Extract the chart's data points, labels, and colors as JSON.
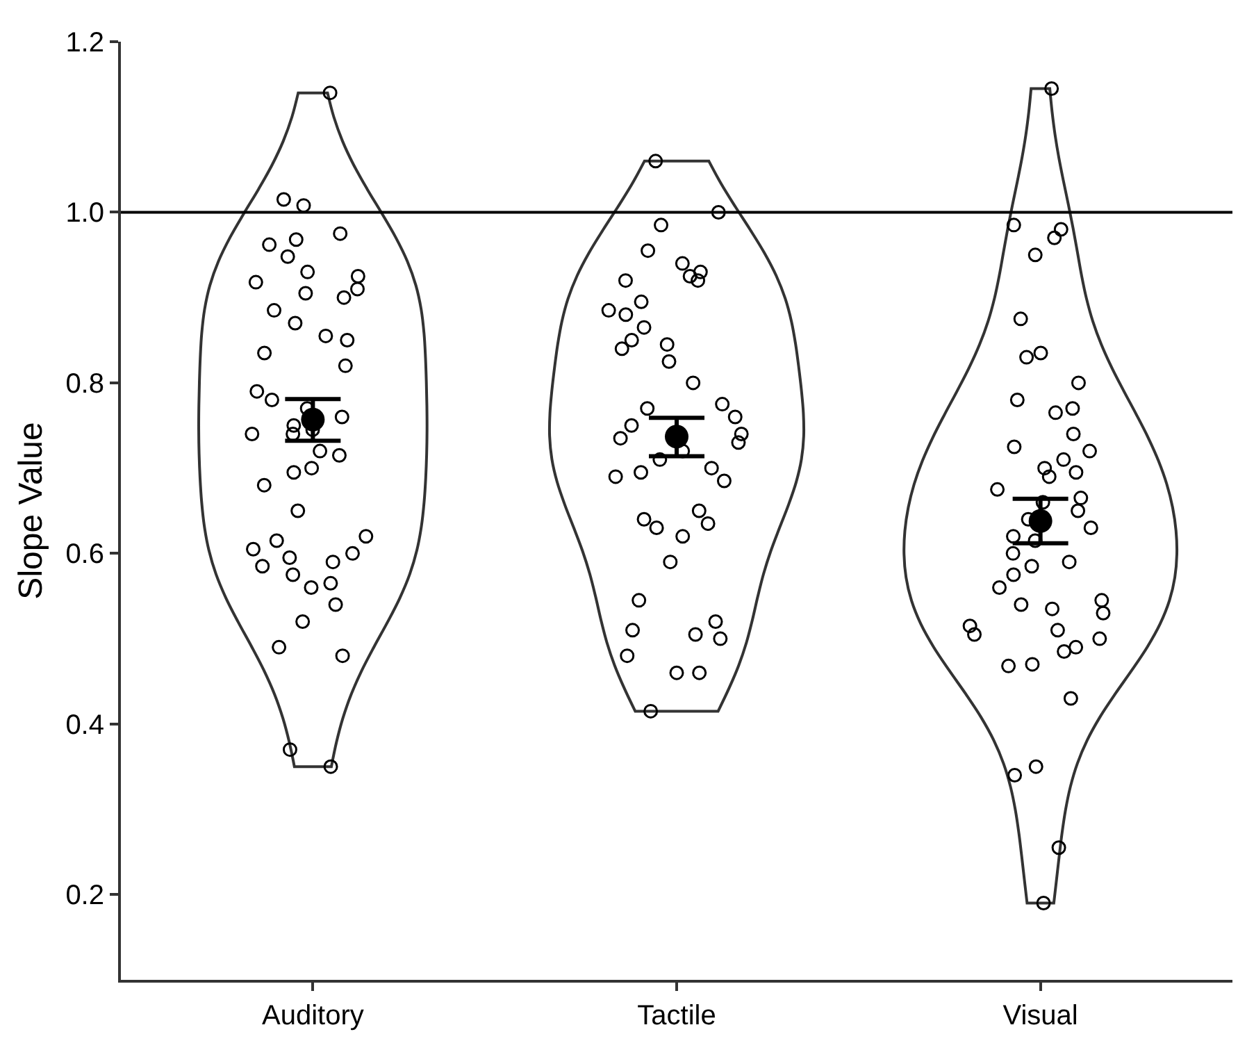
{
  "chart_data": {
    "type": "scatter",
    "ylabel": "Slope Value",
    "categories": [
      "Auditory",
      "Tactile",
      "Visual"
    ],
    "ylim": [
      0.1,
      1.2
    ],
    "yticks": [
      {
        "value": 0.2,
        "label": "0.2"
      },
      {
        "value": 0.4,
        "label": "0.4"
      },
      {
        "value": 0.6,
        "label": "0.6"
      },
      {
        "value": 0.8,
        "label": "0.8"
      },
      {
        "value": 1.0,
        "label": "1.0"
      },
      {
        "value": 1.2,
        "label": "1.2"
      }
    ],
    "grid": false,
    "marker": "circle",
    "ref_lines": [
      {
        "axis": "y",
        "value": 1.0,
        "color": "#000000"
      }
    ],
    "series": [
      {
        "color": "#000000",
        "x": [
          "Auditory",
          "Auditory",
          "Auditory",
          "Auditory",
          "Auditory",
          "Auditory",
          "Auditory",
          "Auditory",
          "Auditory",
          "Auditory",
          "Auditory",
          "Auditory",
          "Auditory",
          "Auditory",
          "Auditory",
          "Auditory",
          "Auditory",
          "Auditory",
          "Auditory",
          "Auditory",
          "Auditory",
          "Auditory",
          "Auditory",
          "Auditory",
          "Auditory",
          "Auditory",
          "Auditory",
          "Auditory",
          "Auditory",
          "Auditory",
          "Auditory",
          "Auditory",
          "Auditory",
          "Auditory",
          "Auditory",
          "Auditory",
          "Auditory",
          "Auditory",
          "Auditory",
          "Auditory",
          "Auditory",
          "Auditory",
          "Auditory",
          "Auditory",
          "Auditory",
          "Auditory",
          "Auditory",
          "Auditory",
          "Auditory",
          "Tactile",
          "Tactile",
          "Tactile",
          "Tactile",
          "Tactile",
          "Tactile",
          "Tactile",
          "Tactile",
          "Tactile",
          "Tactile",
          "Tactile",
          "Tactile",
          "Tactile",
          "Tactile",
          "Tactile",
          "Tactile",
          "Tactile",
          "Tactile",
          "Tactile",
          "Tactile",
          "Tactile",
          "Tactile",
          "Tactile",
          "Tactile",
          "Tactile",
          "Tactile",
          "Tactile",
          "Tactile",
          "Tactile",
          "Tactile",
          "Tactile",
          "Tactile",
          "Tactile",
          "Tactile",
          "Tactile",
          "Tactile",
          "Tactile",
          "Tactile",
          "Tactile",
          "Tactile",
          "Tactile",
          "Tactile",
          "Tactile",
          "Tactile",
          "Tactile",
          "Tactile",
          "Visual",
          "Visual",
          "Visual",
          "Visual",
          "Visual",
          "Visual",
          "Visual",
          "Visual",
          "Visual",
          "Visual",
          "Visual",
          "Visual",
          "Visual",
          "Visual",
          "Visual",
          "Visual",
          "Visual",
          "Visual",
          "Visual",
          "Visual",
          "Visual",
          "Visual",
          "Visual",
          "Visual",
          "Visual",
          "Visual",
          "Visual",
          "Visual",
          "Visual",
          "Visual",
          "Visual",
          "Visual",
          "Visual",
          "Visual",
          "Visual",
          "Visual",
          "Visual",
          "Visual",
          "Visual",
          "Visual",
          "Visual",
          "Visual",
          "Visual",
          "Visual",
          "Visual",
          "Visual",
          "Visual",
          "Visual",
          "Visual"
        ],
        "values": [
          1.14,
          1.015,
          1.008,
          0.975,
          0.968,
          0.962,
          0.948,
          0.93,
          0.925,
          0.918,
          0.91,
          0.9,
          0.905,
          0.885,
          0.87,
          0.855,
          0.85,
          0.835,
          0.82,
          0.79,
          0.78,
          0.77,
          0.76,
          0.75,
          0.745,
          0.74,
          0.74,
          0.72,
          0.715,
          0.7,
          0.695,
          0.68,
          0.65,
          0.62,
          0.615,
          0.605,
          0.6,
          0.595,
          0.59,
          0.585,
          0.575,
          0.565,
          0.56,
          0.54,
          0.52,
          0.49,
          0.48,
          0.37,
          0.35,
          1.06,
          1.0,
          0.985,
          0.955,
          0.94,
          0.93,
          0.925,
          0.92,
          0.92,
          0.895,
          0.885,
          0.88,
          0.865,
          0.85,
          0.845,
          0.84,
          0.825,
          0.8,
          0.775,
          0.77,
          0.76,
          0.75,
          0.74,
          0.735,
          0.73,
          0.72,
          0.71,
          0.7,
          0.695,
          0.69,
          0.685,
          0.65,
          0.64,
          0.635,
          0.63,
          0.62,
          0.59,
          0.545,
          0.52,
          0.51,
          0.505,
          0.5,
          0.48,
          0.46,
          0.46,
          0.415,
          1.145,
          0.985,
          0.98,
          0.97,
          0.95,
          0.875,
          0.835,
          0.83,
          0.8,
          0.78,
          0.77,
          0.765,
          0.74,
          0.725,
          0.72,
          0.71,
          0.7,
          0.695,
          0.69,
          0.675,
          0.665,
          0.66,
          0.65,
          0.64,
          0.63,
          0.62,
          0.615,
          0.6,
          0.59,
          0.585,
          0.575,
          0.56,
          0.545,
          0.54,
          0.535,
          0.53,
          0.515,
          0.51,
          0.505,
          0.5,
          0.49,
          0.485,
          0.47,
          0.468,
          0.43,
          0.35,
          0.34,
          0.255,
          0.19
        ]
      },
      {
        "type": "scatter",
        "color": "#000000",
        "x": [
          "Auditory",
          "Tactile",
          "Visual"
        ],
        "values": [
          0.757,
          0.737,
          0.638
        ],
        "errors": [
          [
            0.732,
            0.781
          ],
          [
            0.714,
            0.759
          ],
          [
            0.612,
            0.664
          ]
        ]
      }
    ]
  }
}
